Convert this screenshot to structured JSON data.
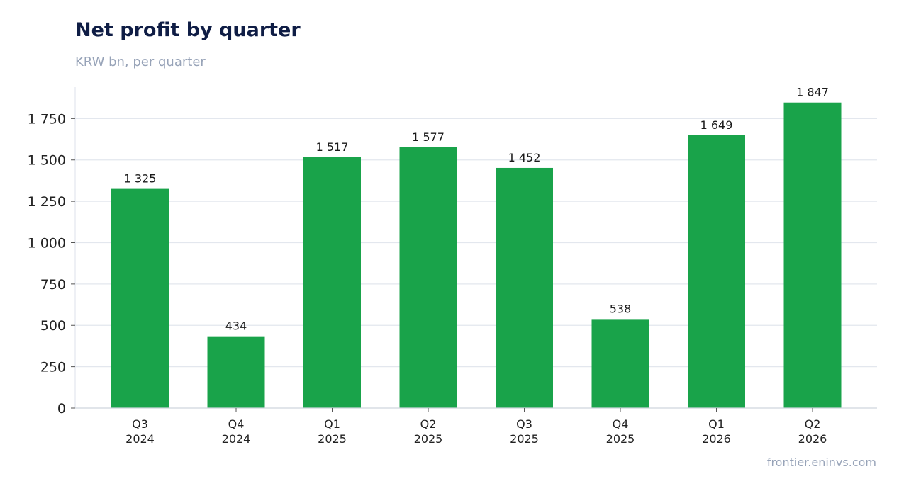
{
  "chart_data": {
    "type": "bar",
    "title": "Net profit by quarter",
    "subtitle": "KRW bn, per quarter",
    "categories": [
      [
        "Q3",
        "2024"
      ],
      [
        "Q4",
        "2024"
      ],
      [
        "Q1",
        "2025"
      ],
      [
        "Q2",
        "2025"
      ],
      [
        "Q3",
        "2025"
      ],
      [
        "Q4",
        "2025"
      ],
      [
        "Q1",
        "2026"
      ],
      [
        "Q2",
        "2026"
      ]
    ],
    "values": [
      1325,
      434,
      1517,
      1577,
      1452,
      538,
      1649,
      1847
    ],
    "data_labels": [
      "1 325",
      "434",
      "1 517",
      "1 577",
      "1 452",
      "538",
      "1 649",
      "1 847"
    ],
    "yticks": [
      0,
      250,
      500,
      750,
      1000,
      1250,
      1500,
      1750
    ],
    "ytick_labels": [
      "0",
      "250",
      "500",
      "750",
      "1 000",
      "1 250",
      "1 500",
      "1 750"
    ],
    "ylim": [
      0,
      1940
    ],
    "grid": true,
    "bar_color": "#19a34a",
    "source": "frontier.eninvs.com"
  }
}
